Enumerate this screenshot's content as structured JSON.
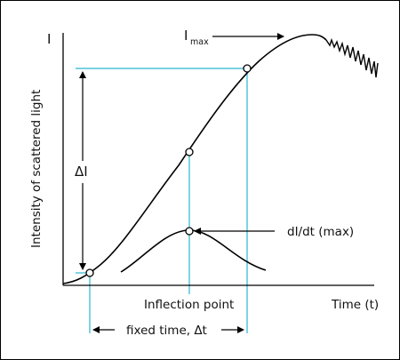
{
  "chart_data": {
    "type": "line",
    "title": "",
    "xlabel": "Time (t)",
    "ylabel": "Intensity of scattered light",
    "y_axis_symbol": "I",
    "grid": false,
    "legend": "none",
    "colors": {
      "curve": "#000000",
      "guide": "#2ab7d0",
      "arrow": "#000000"
    },
    "series": [
      {
        "x": [
          0,
          1,
          2,
          3,
          4,
          5,
          6,
          7,
          8,
          9,
          10,
          11,
          12,
          13,
          14,
          15,
          16,
          17,
          18,
          19,
          20,
          21,
          22,
          23,
          24,
          25,
          26,
          27,
          28,
          29,
          30,
          31,
          32,
          33,
          34,
          35,
          36,
          37,
          38,
          39,
          40,
          41,
          42,
          43,
          44,
          45,
          46,
          47,
          48,
          49,
          50,
          51,
          52,
          53,
          54,
          55,
          56,
          57,
          58,
          59,
          60,
          61,
          62,
          63,
          64,
          65,
          66,
          67,
          68,
          69,
          70,
          71,
          72,
          73,
          74,
          75,
          76,
          77,
          78,
          79,
          80,
          81,
          82,
          83,
          84,
          85,
          86,
          87,
          88,
          89,
          90,
          91,
          92,
          93,
          94,
          95,
          96,
          97,
          98,
          99,
          100,
          101,
          102,
          103,
          104,
          105,
          106,
          107,
          108,
          109,
          110,
          111,
          112,
          113,
          114,
          115,
          116,
          117,
          118,
          119,
          120
        ],
        "y": [
          0.0,
          0.0,
          0.0,
          0.0,
          0.0,
          0.0,
          0.0,
          0.0,
          0.0,
          0.0,
          0.0,
          0.0,
          0.01,
          0.01,
          0.01,
          0.01,
          0.01,
          0.01,
          0.02,
          0.02,
          0.03,
          0.04,
          0.05,
          0.06,
          0.07,
          0.08,
          0.1,
          0.12,
          0.14,
          0.16,
          0.18,
          0.21,
          0.23,
          0.26,
          0.29,
          0.32,
          0.35,
          0.38,
          0.41,
          0.44,
          0.47,
          0.5,
          0.53,
          0.56,
          0.59,
          0.62,
          0.65,
          0.68,
          0.7,
          0.73,
          0.75,
          0.77,
          0.79,
          0.82,
          0.84,
          0.86,
          0.88,
          0.9,
          0.91,
          0.93,
          0.94,
          0.95,
          0.96,
          0.97,
          0.98,
          0.99,
          0.99,
          1.0,
          1.0,
          1.0,
          1.0,
          1.0,
          0.99,
          0.99,
          0.98,
          0.97,
          0.97,
          0.96,
          0.95,
          0.94,
          0.93,
          0.92,
          0.91,
          0.9,
          0.89,
          0.88,
          0.87,
          0.86,
          0.85,
          0.84,
          0.83,
          0.82,
          0.81,
          0.8,
          0.79,
          0.78,
          0.77,
          0.76,
          0.75,
          0.74,
          0.73,
          0.72,
          0.71,
          0.7,
          0.69,
          0.68,
          0.67,
          0.66,
          0.65,
          0.64,
          0.63,
          0.62,
          0.61,
          0.6,
          0.59,
          0.58,
          0.57,
          0.56,
          0.55,
          0.54,
          0.53
        ]
      },
      {
        "x": [
          25,
          30,
          35,
          40,
          45,
          50,
          55,
          60,
          65,
          70,
          75
        ],
        "y": [
          0.05,
          0.12,
          0.23,
          0.33,
          0.38,
          0.36,
          0.29,
          0.2,
          0.12,
          0.06,
          0.02
        ]
      }
    ],
    "annotations": {
      "imax": {
        "label": "I",
        "subscript": "max"
      },
      "delta_i": "ΔI",
      "didt": "dI/dt (max)",
      "inflection": "Inflection point",
      "fixed_time": "fixed time, Δt"
    }
  }
}
